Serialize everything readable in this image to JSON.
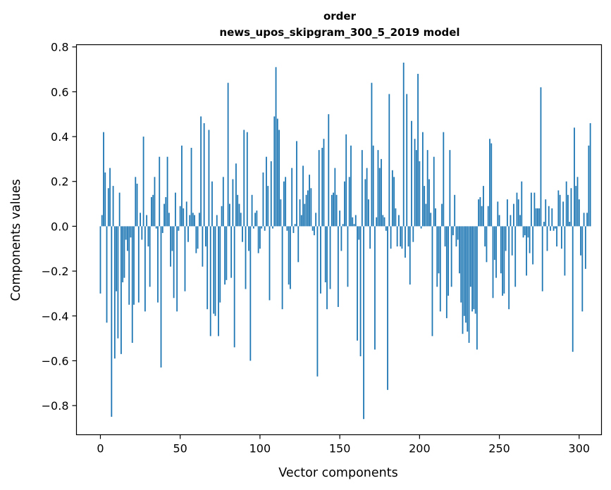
{
  "chart_data": {
    "type": "bar",
    "title_line1": "order",
    "title_line2": "news_upos_skipgram_300_5_2019 model",
    "xlabel": "Vector components",
    "ylabel": "Components values",
    "xlim": [
      -15,
      314
    ],
    "ylim": [
      -0.93,
      0.81
    ],
    "x_ticks": [
      0,
      50,
      100,
      150,
      200,
      250,
      300
    ],
    "y_ticks": [
      -0.8,
      -0.6,
      -0.4,
      -0.2,
      0.0,
      0.2,
      0.4,
      0.6,
      0.8
    ],
    "y_tick_labels": [
      "−0.8",
      "−0.6",
      "−0.4",
      "−0.2",
      "0.0",
      "0.2",
      "0.4",
      "0.6",
      "0.8"
    ],
    "bar_color": "#1f77b4",
    "grid": false,
    "legend": "none",
    "values": [
      -0.3,
      0.05,
      0.42,
      0.24,
      -0.43,
      0.17,
      0.26,
      -0.85,
      0.18,
      -0.59,
      -0.29,
      -0.5,
      0.15,
      -0.57,
      -0.25,
      -0.23,
      -0.06,
      -0.11,
      -0.35,
      -0.05,
      -0.52,
      -0.35,
      0.22,
      0.19,
      -0.34,
      0.06,
      -0.06,
      0.4,
      -0.38,
      0.05,
      -0.09,
      -0.27,
      0.13,
      0.14,
      0.22,
      -0.01,
      -0.34,
      0.31,
      -0.63,
      -0.03,
      0.1,
      0.13,
      0.31,
      0.06,
      -0.18,
      -0.11,
      -0.32,
      0.15,
      -0.38,
      -0.02,
      0.09,
      0.36,
      0.08,
      -0.29,
      0.11,
      -0.07,
      0.05,
      0.35,
      0.06,
      0.05,
      -0.12,
      -0.1,
      0.06,
      0.49,
      -0.18,
      0.46,
      -0.09,
      -0.37,
      0.43,
      -0.49,
      0.2,
      -0.39,
      -0.4,
      0.05,
      -0.49,
      -0.34,
      0.09,
      0.22,
      -0.26,
      -0.24,
      0.64,
      0.1,
      -0.23,
      0.21,
      -0.54,
      0.28,
      0.14,
      0.1,
      0.06,
      -0.07,
      0.43,
      -0.28,
      0.42,
      -0.11,
      -0.6,
      0.14,
      -0.01,
      0.06,
      0.07,
      -0.12,
      -0.1,
      -0.01,
      0.24,
      -0.02,
      0.31,
      0.18,
      -0.33,
      0.29,
      -0.01,
      0.49,
      0.71,
      0.48,
      0.43,
      0.12,
      -0.37,
      0.2,
      0.22,
      -0.02,
      -0.26,
      -0.28,
      0.26,
      -0.03,
      0.01,
      0.38,
      -0.16,
      0.12,
      0.05,
      0.27,
      0.1,
      0.14,
      0.16,
      0.23,
      0.17,
      -0.02,
      -0.04,
      0.06,
      -0.67,
      0.34,
      -0.3,
      0.35,
      0.39,
      -0.25,
      -0.37,
      0.5,
      -0.28,
      0.14,
      0.15,
      0.26,
      0.14,
      -0.36,
      0.07,
      -0.11,
      0.01,
      0.2,
      0.41,
      -0.27,
      0.22,
      0.36,
      0.04,
      0.01,
      0.05,
      -0.51,
      -0.06,
      -0.58,
      0.34,
      -0.86,
      0.21,
      0.26,
      0.12,
      -0.1,
      0.64,
      0.36,
      -0.55,
      0.04,
      0.34,
      0.26,
      0.3,
      0.05,
      0.04,
      -0.02,
      -0.73,
      0.59,
      -0.1,
      0.25,
      0.22,
      0.08,
      -0.09,
      0.05,
      -0.09,
      -0.1,
      0.73,
      -0.14,
      0.59,
      -0.09,
      -0.26,
      0.47,
      -0.07,
      0.39,
      0.34,
      0.68,
      0.29,
      -0.01,
      0.42,
      0.18,
      0.1,
      0.34,
      0.21,
      0.06,
      -0.49,
      0.31,
      0.08,
      -0.27,
      -0.21,
      -0.38,
      0.1,
      0.42,
      -0.09,
      -0.41,
      -0.31,
      0.34,
      -0.27,
      -0.04,
      0.14,
      -0.09,
      -0.06,
      -0.21,
      -0.34,
      -0.48,
      -0.4,
      -0.43,
      -0.47,
      -0.52,
      -0.27,
      -0.38,
      -0.37,
      -0.39,
      -0.55,
      0.12,
      0.13,
      0.09,
      0.18,
      -0.09,
      -0.16,
      0.09,
      0.39,
      0.37,
      -0.32,
      -0.15,
      -0.23,
      0.11,
      0.05,
      -0.21,
      -0.31,
      -0.3,
      -0.11,
      0.12,
      -0.37,
      0.05,
      -0.13,
      0.1,
      -0.27,
      0.15,
      0.12,
      0.05,
      0.2,
      -0.05,
      -0.04,
      -0.22,
      -0.05,
      -0.12,
      0.15,
      -0.17,
      0.15,
      0.08,
      0.08,
      0.08,
      0.62,
      -0.29,
      0.02,
      0.12,
      -0.11,
      0.09,
      -0.02,
      0.08,
      -0.02,
      -0.01,
      -0.09,
      0.16,
      0.14,
      -0.1,
      0.11,
      -0.22,
      0.2,
      0.14,
      0.02,
      0.17,
      -0.56,
      0.44,
      0.18,
      0.22,
      0.12,
      -0.13,
      -0.38,
      0.06,
      -0.19,
      0.06,
      0.36,
      0.46
    ]
  }
}
